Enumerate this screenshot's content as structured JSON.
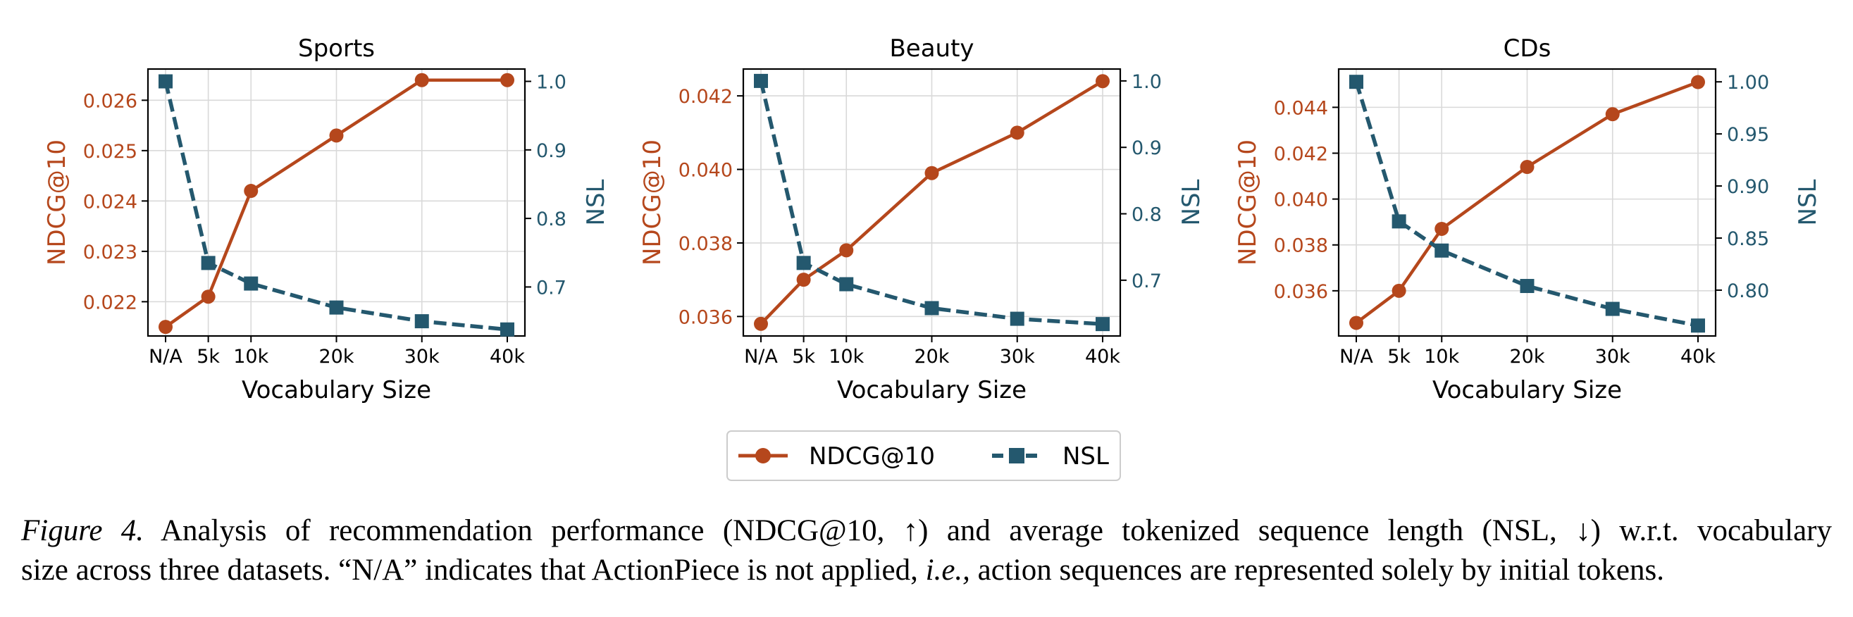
{
  "chart_data": [
    {
      "type": "line",
      "title": "Sports",
      "xlabel": "Vocabulary Size",
      "ylabel": "NDCG@10",
      "y2label": "NSL",
      "x": [
        0,
        5,
        10,
        20,
        30,
        40
      ],
      "xticklabels": [
        "N/A",
        "5k",
        "10k",
        "20k",
        "30k",
        "40k"
      ],
      "ylim": [
        0.02132,
        0.02662
      ],
      "yticks": [
        "0.022",
        "0.023",
        "0.024",
        "0.025",
        "0.026"
      ],
      "y2lim": [
        0.6285,
        1.018
      ],
      "y2ticks": [
        "0.7",
        "0.8",
        "0.9",
        "1.0"
      ],
      "series": [
        {
          "name": "NDCG@10",
          "axis": "left",
          "values": [
            0.0215,
            0.0221,
            0.0242,
            0.0253,
            0.0264,
            0.0264
          ]
        },
        {
          "name": "NSL",
          "axis": "right",
          "values": [
            1.0,
            0.735,
            0.705,
            0.67,
            0.65,
            0.638
          ]
        }
      ]
    },
    {
      "type": "line",
      "title": "Beauty",
      "xlabel": "Vocabulary Size",
      "ylabel": "NDCG@10",
      "y2label": "NSL",
      "x": [
        0,
        5,
        10,
        20,
        30,
        40
      ],
      "xticklabels": [
        "N/A",
        "5k",
        "10k",
        "20k",
        "30k",
        "40k"
      ],
      "ylim": [
        0.03547,
        0.04273
      ],
      "yticks": [
        "0.036",
        "0.038",
        "0.040",
        "0.042"
      ],
      "y2lim": [
        0.6161,
        1.0179
      ],
      "y2ticks": [
        "0.7",
        "0.8",
        "0.9",
        "1.0"
      ],
      "series": [
        {
          "name": "NDCG@10",
          "axis": "left",
          "values": [
            0.0358,
            0.037,
            0.0378,
            0.0399,
            0.041,
            0.0424
          ]
        },
        {
          "name": "NSL",
          "axis": "right",
          "values": [
            1.0,
            0.726,
            0.694,
            0.658,
            0.642,
            0.634
          ]
        }
      ]
    },
    {
      "type": "line",
      "title": "CDs",
      "xlabel": "Vocabulary Size",
      "ylabel": "NDCG@10",
      "y2label": "NSL",
      "x": [
        0,
        5,
        10,
        20,
        30,
        40
      ],
      "xticklabels": [
        "N/A",
        "5k",
        "10k",
        "20k",
        "30k",
        "40k"
      ],
      "ylim": [
        0.03403,
        0.04567
      ],
      "yticks": [
        "0.036",
        "0.038",
        "0.040",
        "0.042",
        "0.044"
      ],
      "y2lim": [
        0.756,
        1.0123
      ],
      "y2ticks": [
        "0.80",
        "0.85",
        "0.90",
        "0.95",
        "1.00"
      ],
      "series": [
        {
          "name": "NDCG@10",
          "axis": "left",
          "values": [
            0.0346,
            0.036,
            0.0387,
            0.0414,
            0.0437,
            0.0451
          ]
        },
        {
          "name": "NSL",
          "axis": "right",
          "values": [
            1.0,
            0.866,
            0.838,
            0.804,
            0.782,
            0.766
          ]
        }
      ]
    }
  ],
  "legend": {
    "placement": "bottom-center",
    "items": [
      {
        "label": "NDCG@10",
        "color": "#b5471c",
        "marker": "circle",
        "line": "solid"
      },
      {
        "label": "NSL",
        "color": "#24586e",
        "marker": "square",
        "line": "dashed"
      }
    ]
  },
  "colors": {
    "ndcg": "#b5471c",
    "nsl": "#24586e",
    "grid": "#d9d9d9",
    "axis": "#000000"
  },
  "caption": {
    "label": "Figure 4.",
    "text1": " Analysis of recommendation performance (NDCG@10, ↑) and average tokenized sequence length (NSL, ↓) w.r.t. vocabulary",
    "text2a": "size across three datasets. “N/A” indicates that ActionPiece is not applied, ",
    "ie": "i.e.,",
    "text2b": " action sequences are represented solely by initial tokens."
  }
}
